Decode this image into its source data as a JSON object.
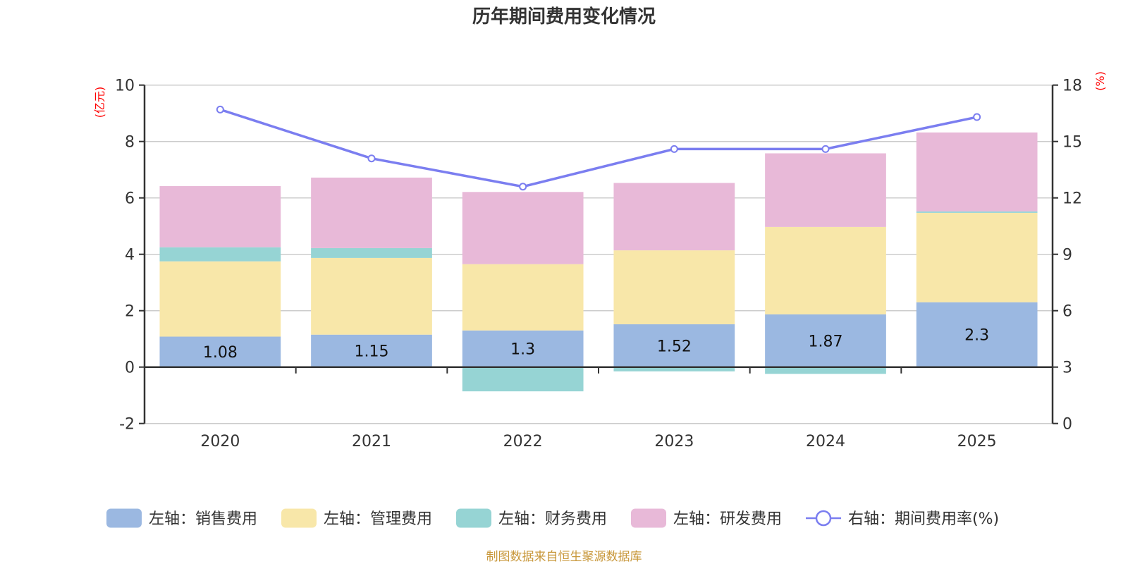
{
  "title": "历年期间费用变化情况",
  "footer": "制图数据来自恒生聚源数据库",
  "chart_data": {
    "type": "bar",
    "stacked": true,
    "title": "历年期间费用变化情况",
    "categories": [
      "2020",
      "2021",
      "2022",
      "2023",
      "2024",
      "2025"
    ],
    "left_axis": {
      "label": "(亿元)",
      "range": [
        -2,
        10
      ],
      "ticks": [
        "-2",
        "0",
        "2",
        "4",
        "6",
        "8",
        "10"
      ],
      "tick_values": [
        -2,
        0,
        2,
        4,
        6,
        8,
        10
      ]
    },
    "right_axis": {
      "label": "(%)",
      "range": [
        0,
        18
      ],
      "ticks": [
        "0",
        "3",
        "6",
        "9",
        "12",
        "15",
        "18"
      ],
      "tick_values": [
        0,
        3,
        6,
        9,
        12,
        15,
        18
      ]
    },
    "grid": true,
    "legend_position": "bottom",
    "series": [
      {
        "name": "左轴：销售费用",
        "axis": "left",
        "type": "bar",
        "color": "#9bb8e1",
        "values": [
          1.08,
          1.15,
          1.3,
          1.52,
          1.87,
          2.3
        ],
        "labels": [
          "1.08",
          "1.15",
          "1.3",
          "1.52",
          "1.87",
          "2.3"
        ]
      },
      {
        "name": "左轴：管理费用",
        "axis": "left",
        "type": "bar",
        "color": "#f8e7a9",
        "values": [
          2.67,
          2.72,
          2.35,
          2.62,
          3.1,
          3.17
        ]
      },
      {
        "name": "左轴：财务费用",
        "axis": "left",
        "type": "bar",
        "color": "#96d4d4",
        "values": [
          0.5,
          0.35,
          -0.86,
          -0.15,
          -0.24,
          0.05
        ]
      },
      {
        "name": "左轴：研发费用",
        "axis": "left",
        "type": "bar",
        "color": "#e8b9d8",
        "values": [
          2.17,
          2.5,
          2.56,
          2.39,
          2.61,
          2.8
        ]
      },
      {
        "name": "右轴：期间费用率(%)",
        "axis": "right",
        "type": "line",
        "color": "#7b7ef0",
        "values": [
          16.7,
          14.1,
          12.6,
          14.6,
          14.6,
          16.3
        ]
      }
    ]
  }
}
